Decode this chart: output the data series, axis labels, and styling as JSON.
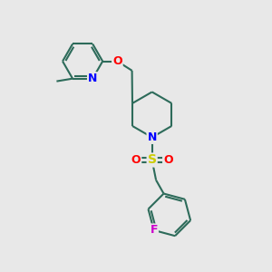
{
  "bg_color": "#e8e8e8",
  "bond_color": "#2d6b5a",
  "N_color": "#0000ff",
  "O_color": "#ff0000",
  "S_color": "#cccc00",
  "F_color": "#cc00cc",
  "line_width": 1.5,
  "figsize": [
    3.0,
    3.0
  ],
  "dpi": 100,
  "xlim": [
    0,
    10
  ],
  "ylim": [
    0,
    10
  ]
}
